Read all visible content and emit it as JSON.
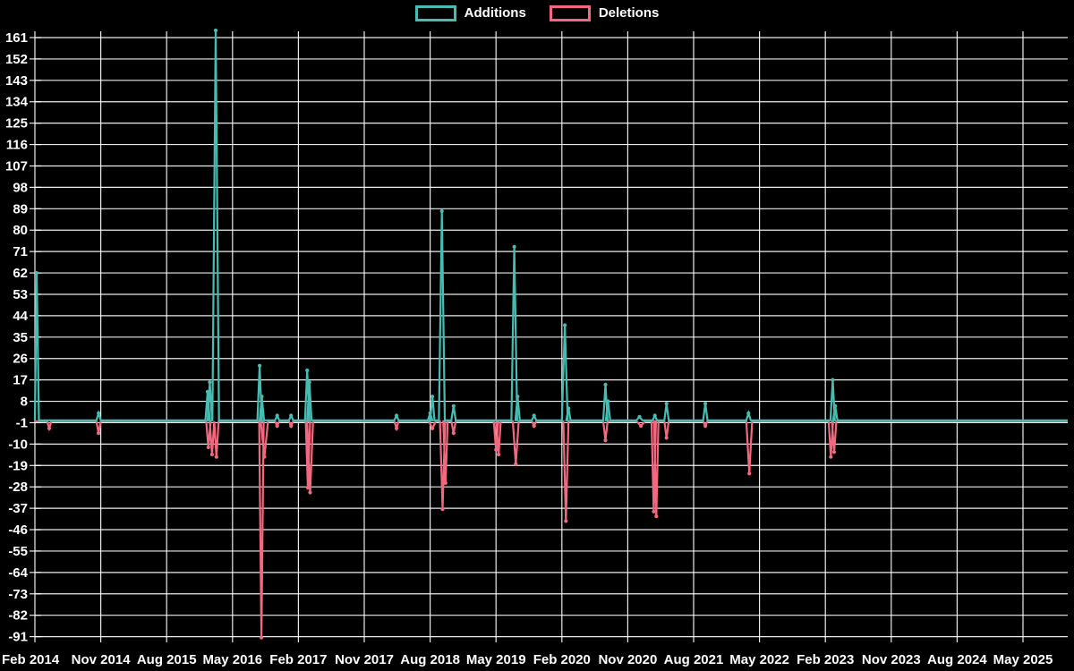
{
  "page": {
    "background": "#000000",
    "text_color": "#ffffff",
    "grid_color": "#ffffff"
  },
  "legend": {
    "items": [
      {
        "label": "Additions",
        "color": "#46bdb2"
      },
      {
        "label": "Deletions",
        "color": "#f4687f"
      }
    ]
  },
  "chart_data": {
    "type": "line",
    "title": "",
    "xlabel": "",
    "ylabel": "",
    "grid": true,
    "legend_position": "top-center",
    "x_axis": {
      "unit": "months-since-first-tick",
      "tick_step_months": 9,
      "tick_labels": [
        "Feb 2014",
        "Nov 2014",
        "Aug 2015",
        "May 2016",
        "Feb 2017",
        "Nov 2017",
        "Aug 2018",
        "May 2019",
        "Feb 2020",
        "Nov 2020",
        "Aug 2021",
        "May 2022",
        "Feb 2023",
        "Nov 2023",
        "Aug 2024",
        "May 2025"
      ],
      "total_months": 141.1
    },
    "y_axis": {
      "min": -91,
      "max": 161,
      "tick_step": 9,
      "tick_labels": [
        161,
        152,
        143,
        134,
        125,
        116,
        107,
        98,
        89,
        80,
        71,
        62,
        53,
        44,
        35,
        26,
        17,
        8,
        -1,
        -10,
        -19,
        -28,
        -37,
        -46,
        -55,
        -64,
        -73,
        -82,
        -91
      ]
    },
    "baseline_value": 0,
    "series": [
      {
        "name": "Additions",
        "color": "#46bdb2",
        "spikes": [
          [
            0.25,
            62
          ],
          [
            8.7,
            3
          ],
          [
            23.6,
            12
          ],
          [
            23.9,
            16
          ],
          [
            24.7,
            164,
            0.45
          ],
          [
            30.7,
            23
          ],
          [
            31.0,
            10
          ],
          [
            33.1,
            2
          ],
          [
            35.0,
            2
          ],
          [
            37.2,
            21
          ],
          [
            37.5,
            16
          ],
          [
            49.4,
            2
          ],
          [
            54.0,
            3
          ],
          [
            54.3,
            10
          ],
          [
            55.6,
            88,
            0.4
          ],
          [
            57.2,
            6
          ],
          [
            65.5,
            73,
            0.4
          ],
          [
            65.95,
            10
          ],
          [
            68.2,
            2
          ],
          [
            72.4,
            40,
            0.4
          ],
          [
            72.9,
            5
          ],
          [
            77.95,
            15
          ],
          [
            78.3,
            8
          ],
          [
            82.6,
            1.5,
            0.4
          ],
          [
            84.7,
            2
          ],
          [
            86.3,
            7
          ],
          [
            91.6,
            7
          ],
          [
            97.5,
            3
          ],
          [
            109.0,
            17
          ],
          [
            109.35,
            6
          ]
        ]
      },
      {
        "name": "Deletions",
        "color": "#f4687f",
        "spikes": [
          [
            1.96,
            -3
          ],
          [
            8.7,
            -5
          ],
          [
            23.7,
            -11
          ],
          [
            24.2,
            -14
          ],
          [
            24.8,
            -15
          ],
          [
            30.95,
            -91,
            0.3
          ],
          [
            31.35,
            -15,
            0.5
          ],
          [
            33.1,
            -2
          ],
          [
            35.0,
            -2
          ],
          [
            37.3,
            -28
          ],
          [
            37.6,
            -30,
            0.4
          ],
          [
            49.4,
            -3
          ],
          [
            54.3,
            -3,
            0.5
          ],
          [
            55.7,
            -37,
            0.35
          ],
          [
            56.1,
            -26
          ],
          [
            57.2,
            -5
          ],
          [
            63.0,
            -12
          ],
          [
            63.35,
            -14
          ],
          [
            65.7,
            -18,
            0.4
          ],
          [
            68.2,
            -2
          ],
          [
            72.55,
            -42,
            0.35
          ],
          [
            77.95,
            -8
          ],
          [
            82.8,
            -2,
            0.6
          ],
          [
            84.55,
            -38
          ],
          [
            84.9,
            -40
          ],
          [
            86.3,
            -7
          ],
          [
            91.6,
            -2
          ],
          [
            97.6,
            -22,
            0.4
          ],
          [
            108.75,
            -15
          ],
          [
            109.2,
            -13
          ]
        ]
      }
    ]
  }
}
